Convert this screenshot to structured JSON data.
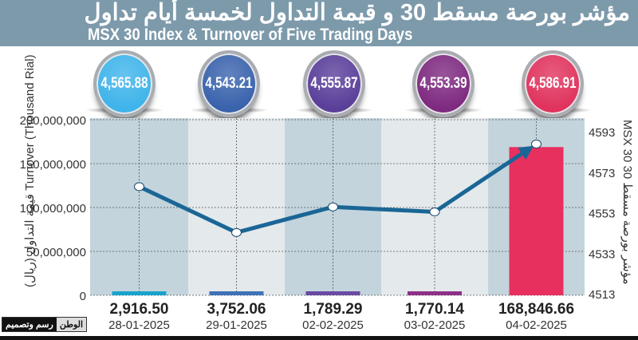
{
  "header": {
    "title_ar": "مؤشر بورصة مسقط 30 و قيمة التداول لخمسة أيام تداول",
    "title_en": "MSX 30 Index & Turnover of Five Trading Days"
  },
  "logo": {
    "name": "الوطن",
    "tagline": "رسم وتصميم"
  },
  "colors": {
    "title_band": "#7d9aab",
    "line": "#1a6696",
    "band_dark": "#c3d4dc",
    "band_light": "#e4e9ec"
  },
  "chart_data": {
    "type": "bar+line",
    "categories": [
      "28-01-2025",
      "29-01-2025",
      "02-02-2025",
      "03-02-2025",
      "04-02-2025"
    ],
    "series": [
      {
        "name": "Turnover (Thousand Rial)",
        "type": "bar",
        "values": [
          2916.5,
          3752.06,
          1789.29,
          1770.14,
          168846.66
        ],
        "labels": [
          "2,916.50",
          "3,752.06",
          "1,789.29",
          "1,770.14",
          "168,846.66"
        ],
        "colors": [
          "#19a3cc",
          "#3f72b8",
          "#6a4aa3",
          "#8e3088",
          "#e8305f"
        ]
      },
      {
        "name": "MSX 30",
        "type": "line",
        "values": [
          4565.88,
          4543.21,
          4555.87,
          4553.39,
          4586.91
        ],
        "labels": [
          "4,565.88",
          "4,543.21",
          "4,555.87",
          "4,553.39",
          "4,586.91"
        ],
        "bubble_colors": [
          "#3fb4ea",
          "#3a63ad",
          "#5a3f9a",
          "#7e2a80",
          "#e0335d"
        ]
      }
    ],
    "y_left": {
      "label_ar": "قيمة التداول (ريال)",
      "label_en": "Turnover (Thousand Rial)",
      "ticks": [
        "200,000,000",
        "150,000,000",
        "100,000,000",
        "50,000,000",
        "0"
      ],
      "range": [
        0,
        200000000
      ]
    },
    "y_right": {
      "label_ar": "مؤشر بورصة مسقط 30",
      "label_en": "MSX 30",
      "ticks": [
        "4593",
        "4573",
        "4553",
        "4533",
        "4513"
      ],
      "range": [
        4513,
        4593
      ]
    },
    "grid": true
  }
}
